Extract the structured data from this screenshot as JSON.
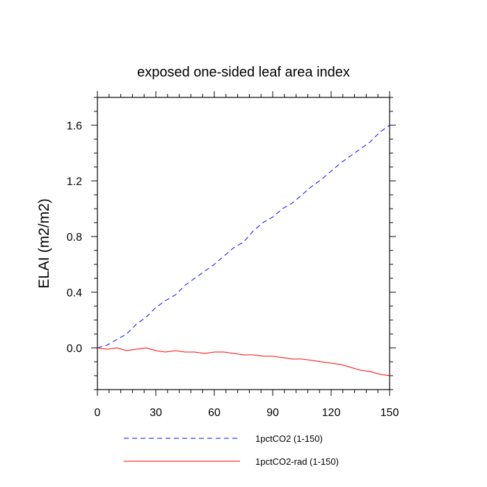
{
  "chart_data": {
    "type": "line",
    "title": "exposed one-sided leaf area index",
    "xlabel": "",
    "ylabel": "ELAI  (m2/m2)",
    "xlim": [
      0,
      150
    ],
    "ylim": [
      -0.3,
      1.8
    ],
    "xticks": [
      0,
      30,
      60,
      90,
      120,
      150
    ],
    "xtick_labels": [
      "0",
      "30",
      "60",
      "90",
      "120",
      "150"
    ],
    "yticks": [
      0.0,
      0.4,
      0.8,
      1.2,
      1.6
    ],
    "ytick_labels": [
      "0.0",
      "0.4",
      "0.8",
      "1.2",
      "1.6"
    ],
    "grid": false,
    "legend_position": "bottom",
    "x": [
      0,
      5,
      10,
      15,
      20,
      25,
      30,
      35,
      40,
      45,
      50,
      55,
      60,
      65,
      70,
      75,
      80,
      85,
      90,
      95,
      100,
      105,
      110,
      115,
      120,
      125,
      130,
      135,
      140,
      145,
      150
    ],
    "series": [
      {
        "name": "1pctCO2 (1-150)",
        "color": "#0000ff",
        "style": "dashed",
        "values": [
          0.0,
          0.02,
          0.06,
          0.1,
          0.17,
          0.22,
          0.29,
          0.34,
          0.38,
          0.45,
          0.5,
          0.55,
          0.6,
          0.66,
          0.72,
          0.76,
          0.84,
          0.9,
          0.94,
          1.0,
          1.04,
          1.1,
          1.16,
          1.21,
          1.27,
          1.33,
          1.38,
          1.43,
          1.48,
          1.55,
          1.6
        ]
      },
      {
        "name": "1pctCO2-rad (1-150)",
        "color": "#ff0000",
        "style": "solid",
        "values": [
          0.0,
          -0.01,
          0.0,
          -0.02,
          -0.01,
          0.0,
          -0.02,
          -0.03,
          -0.02,
          -0.03,
          -0.03,
          -0.04,
          -0.03,
          -0.03,
          -0.04,
          -0.05,
          -0.05,
          -0.06,
          -0.06,
          -0.07,
          -0.08,
          -0.08,
          -0.09,
          -0.1,
          -0.11,
          -0.12,
          -0.14,
          -0.16,
          -0.17,
          -0.19,
          -0.2
        ]
      }
    ]
  }
}
